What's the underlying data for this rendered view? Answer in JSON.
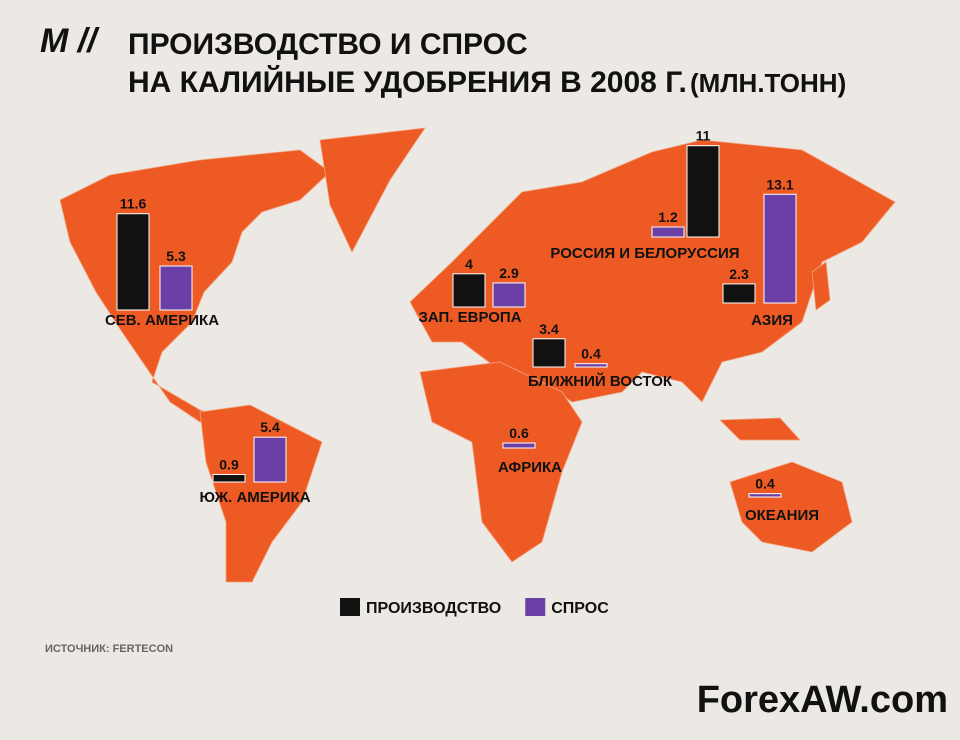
{
  "chart_data": {
    "type": "bar",
    "logo": "M //",
    "title": "ПРОИЗВОДСТВО И СПРОС",
    "subtitle": "НА КАЛИЙНЫЕ УДОБРЕНИЯ В 2008 Г.",
    "unit": "(МЛН.ТОНН)",
    "categories": [
      "СЕВ. АМЕРИКА",
      "ЮЖ. АМЕРИКА",
      "ЗАП. ЕВРОПА",
      "БЛИЖНИЙ ВОСТОК",
      "АФРИКА",
      "РОССИЯ И БЕЛОРУССИЯ",
      "АЗИЯ",
      "ОКЕАНИЯ"
    ],
    "series": [
      {
        "name": "ПРОИЗВОДСТВО",
        "color": "#111111",
        "values": [
          11.6,
          0.9,
          4,
          3.4,
          null,
          11,
          2.3,
          null
        ]
      },
      {
        "name": "СПРОС",
        "color": "#6a3fa6",
        "values": [
          5.3,
          5.4,
          2.9,
          0.4,
          0.6,
          1.2,
          13.1,
          0.4
        ]
      }
    ],
    "source": "ИСТОЧНИК: FERTECON",
    "watermark": "ForexAW.com"
  }
}
